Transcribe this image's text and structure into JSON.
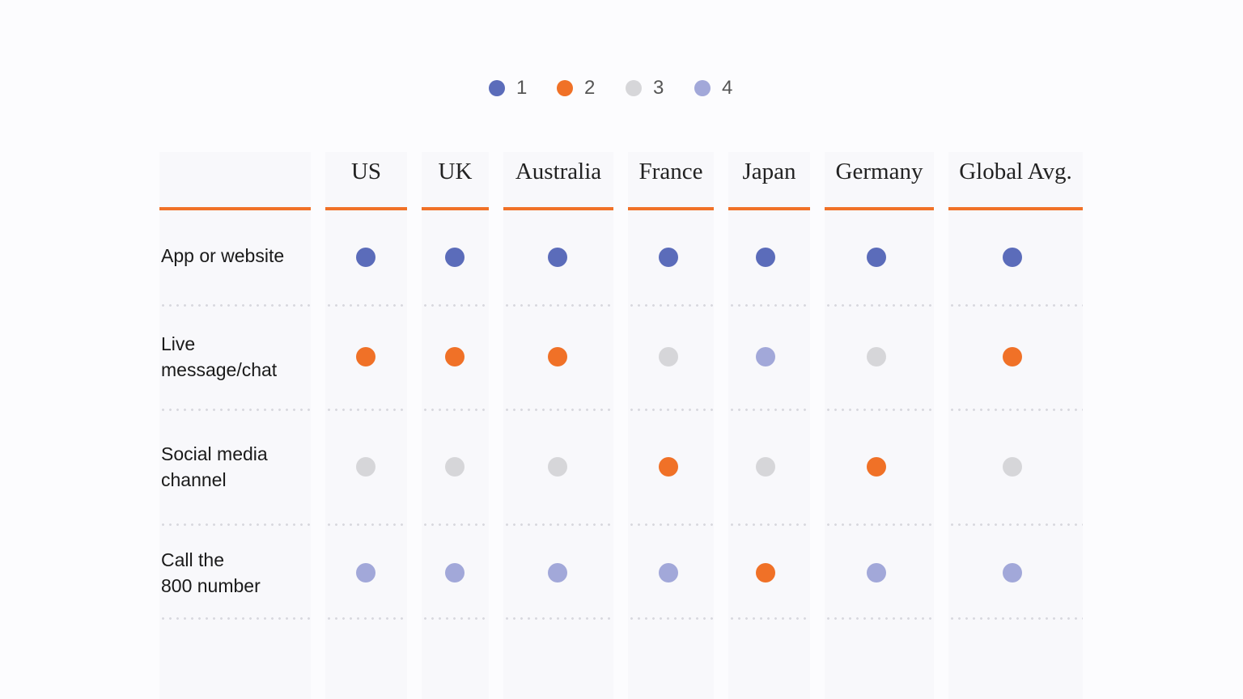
{
  "chart_data": {
    "type": "table",
    "legend": [
      {
        "label": "1",
        "color": "#5b6cba"
      },
      {
        "label": "2",
        "color": "#f07127"
      },
      {
        "label": "3",
        "color": "#d6d6d9"
      },
      {
        "label": "4",
        "color": "#a2a8d9"
      }
    ],
    "columns": [
      "US",
      "UK",
      "Australia",
      "France",
      "Japan",
      "Germany",
      "Global Avg."
    ],
    "rows": [
      {
        "label": "App or website",
        "ranks": [
          1,
          1,
          1,
          1,
          1,
          1,
          1
        ]
      },
      {
        "label": "Live\nmessage/chat",
        "ranks": [
          2,
          2,
          2,
          3,
          4,
          3,
          2
        ]
      },
      {
        "label": "Social media\nchannel",
        "ranks": [
          3,
          3,
          3,
          2,
          3,
          2,
          3
        ]
      },
      {
        "label": "Call the\n800 number",
        "ranks": [
          4,
          4,
          4,
          4,
          2,
          4,
          4
        ]
      }
    ]
  }
}
